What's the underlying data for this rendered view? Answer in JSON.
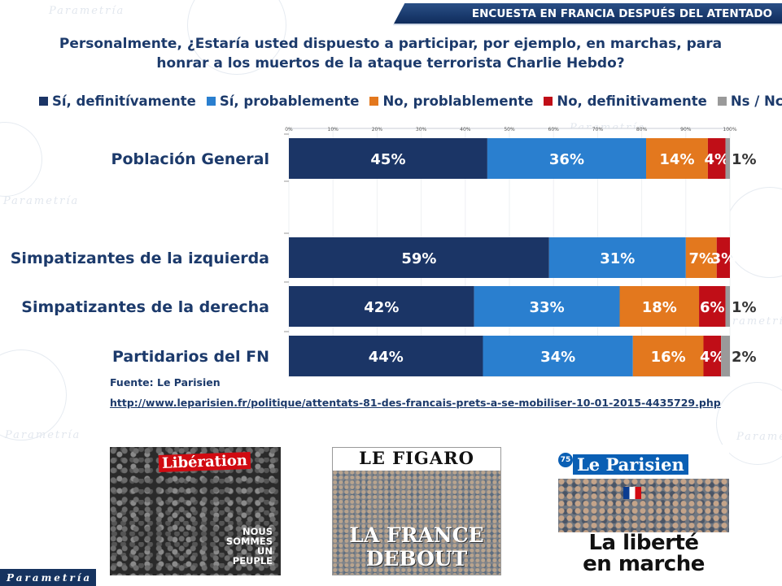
{
  "banner": "ENCUESTA EN FRANCIA DESPUÉS DEL ATENTADO",
  "question": "Personalmente, ¿Estaría usted dispuesto a participar, por ejemplo,  en marchas, para honrar a los muertos de la ataque terrorista Charlie Hebdo?",
  "watermark": "Parametría",
  "chart_data": {
    "type": "bar",
    "orientation": "horizontal",
    "stacked": true,
    "xlim": [
      0,
      100
    ],
    "ticks": [
      "0%",
      "10%",
      "20%",
      "30%",
      "40%",
      "50%",
      "60%",
      "70%",
      "80%",
      "90%",
      "100%"
    ],
    "categories": [
      "Población General",
      "",
      "Simpatizantes de la izquierda",
      "Simpatizantes de la derecha",
      "Partidarios del FN"
    ],
    "series": [
      {
        "name": "Sí, definitívamente",
        "color": "#1b3566",
        "values": [
          45,
          null,
          59,
          42,
          44
        ],
        "labels": [
          "45%",
          "",
          "59%",
          "42%",
          "44%"
        ]
      },
      {
        "name": "Sí, probablemente",
        "color": "#2a7fcf",
        "values": [
          36,
          null,
          31,
          33,
          34
        ],
        "labels": [
          "36%",
          "",
          "31%",
          "33%",
          "34%"
        ]
      },
      {
        "name": "No, problablemente",
        "color": "#e3781e",
        "values": [
          14,
          null,
          7,
          18,
          16
        ],
        "labels": [
          "14%",
          "",
          "7%",
          "18%",
          "16%"
        ]
      },
      {
        "name": "No, definitivamente",
        "color": "#c00e17",
        "values": [
          4,
          null,
          3,
          6,
          4
        ],
        "labels": [
          "4%",
          "",
          "3%",
          "6%",
          "4%"
        ]
      },
      {
        "name": "Ns / Nc",
        "color": "#9a9a9a",
        "values": [
          1,
          null,
          0,
          1,
          2
        ],
        "labels": [
          "1%",
          "",
          "",
          "1%",
          "2%"
        ]
      }
    ],
    "legend_position": "top",
    "grid": true
  },
  "source": {
    "label": "Fuente: Le Parisien",
    "url": "http://www.leparisien.fr/politique/attentats-81-des-francais-prets-a-se-mobiliser-10-01-2015-4435729.php"
  },
  "covers": {
    "liberation": {
      "title": "Libération",
      "subtitle": "NOUS SOMMES UN PEUPLE"
    },
    "figaro": {
      "title": "LE FIGARO",
      "headline_1": "LA FRANCE",
      "headline_2": "DEBOUT"
    },
    "parisien": {
      "badge": "75",
      "title": "Le Parisien",
      "headline_1": "La liberté",
      "headline_2": "en marche"
    }
  },
  "brand": "Parametría"
}
